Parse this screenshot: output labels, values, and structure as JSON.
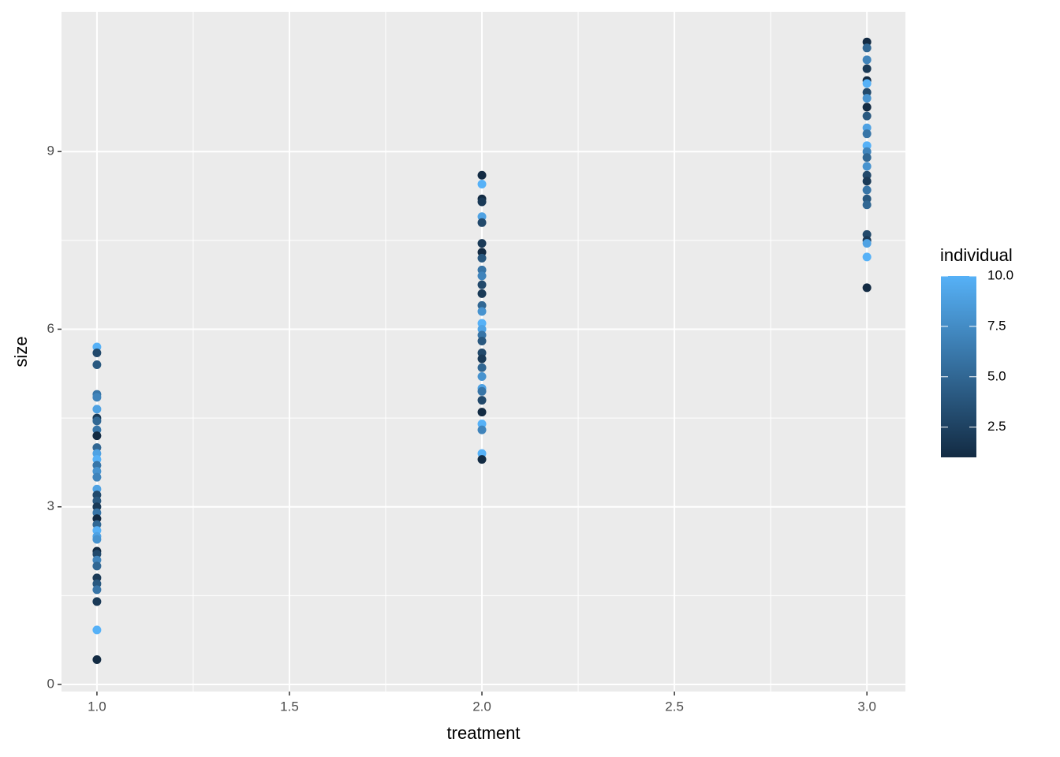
{
  "chart_data": {
    "type": "scatter",
    "x_label": "treatment",
    "y_label": "size",
    "xlim": [
      0.908,
      3.1
    ],
    "ylim": [
      -0.12,
      11.36
    ],
    "xticks": [
      {
        "value": 1,
        "label": "1.0"
      },
      {
        "value": 1.5,
        "label": "1.5"
      },
      {
        "value": 2,
        "label": "2.0"
      },
      {
        "value": 2.5,
        "label": "2.5"
      },
      {
        "value": 3,
        "label": "3.0"
      }
    ],
    "yticks": [
      0,
      3,
      6,
      9
    ],
    "grid": true,
    "legend": {
      "title": "individual",
      "position": "right",
      "low_color": "#132B43",
      "high_color": "#56B1F7",
      "lim": [
        1,
        10
      ],
      "ticks": [
        {
          "value": 2.5,
          "label": "2.5"
        },
        {
          "value": 5,
          "label": "5.0"
        },
        {
          "value": 7.5,
          "label": "7.5"
        },
        {
          "value": 10,
          "label": "10.0"
        }
      ]
    },
    "x": [
      1,
      1,
      1,
      1,
      1,
      1,
      1,
      1,
      1,
      1,
      1,
      1,
      1,
      1,
      1,
      1,
      1,
      1,
      1,
      1,
      1,
      1,
      1,
      1,
      1,
      1,
      1,
      1,
      1,
      1,
      1,
      1,
      1,
      1,
      1,
      1,
      2,
      2,
      2,
      2,
      2,
      2,
      2,
      2,
      2,
      2,
      2,
      2,
      2,
      2,
      2,
      2,
      2,
      2,
      2,
      2,
      2,
      2,
      2,
      2,
      2,
      2,
      2,
      2,
      2,
      2,
      2,
      3,
      3,
      3,
      3,
      3,
      3,
      3,
      3,
      3,
      3,
      3,
      3,
      3,
      3,
      3,
      3,
      3,
      3,
      3,
      3,
      3,
      3,
      3,
      3,
      3,
      3
    ],
    "y": [
      5.7,
      5.6,
      5.4,
      4.9,
      4.85,
      4.65,
      4.5,
      4.45,
      4.3,
      4.2,
      4.0,
      3.9,
      3.8,
      3.7,
      3.6,
      3.5,
      3.3,
      3.2,
      3.1,
      3.0,
      2.9,
      2.8,
      2.7,
      2.6,
      2.5,
      2.45,
      2.25,
      2.2,
      2.1,
      2.0,
      1.8,
      1.7,
      1.6,
      1.4,
      0.92,
      0.42,
      8.6,
      8.45,
      8.2,
      8.15,
      7.9,
      7.8,
      7.45,
      7.3,
      7.2,
      7.0,
      6.9,
      6.75,
      6.6,
      6.4,
      6.3,
      6.1,
      6.0,
      5.9,
      5.8,
      5.6,
      5.5,
      5.35,
      5.2,
      5.0,
      4.95,
      4.8,
      4.6,
      4.4,
      4.3,
      3.9,
      3.8,
      10.85,
      10.75,
      10.55,
      10.4,
      10.2,
      10.15,
      10.0,
      9.9,
      9.75,
      9.6,
      9.4,
      9.3,
      9.1,
      9.0,
      8.9,
      8.75,
      8.6,
      8.5,
      8.35,
      8.2,
      8.1,
      7.6,
      7.5,
      7.45,
      7.22,
      6.7
    ],
    "color_values": [
      10,
      3,
      4,
      6,
      7,
      9,
      2,
      5,
      6,
      1,
      5,
      9,
      10,
      6,
      8,
      7,
      9,
      3,
      4,
      2,
      6,
      1,
      5,
      10,
      9,
      8,
      1,
      3,
      7,
      5,
      2,
      4,
      6,
      2,
      10,
      1,
      1,
      10,
      1,
      2,
      9,
      3,
      2,
      1,
      4,
      6,
      7,
      3,
      2,
      5,
      8,
      10,
      9,
      6,
      4,
      3,
      2,
      5,
      8,
      9,
      6,
      3,
      1,
      10,
      7,
      10,
      1,
      1,
      5,
      7,
      2,
      1,
      10,
      3,
      8,
      1,
      4,
      9,
      6,
      10,
      7,
      5,
      8,
      3,
      2,
      6,
      4,
      5,
      3,
      2,
      9,
      10,
      1
    ]
  }
}
